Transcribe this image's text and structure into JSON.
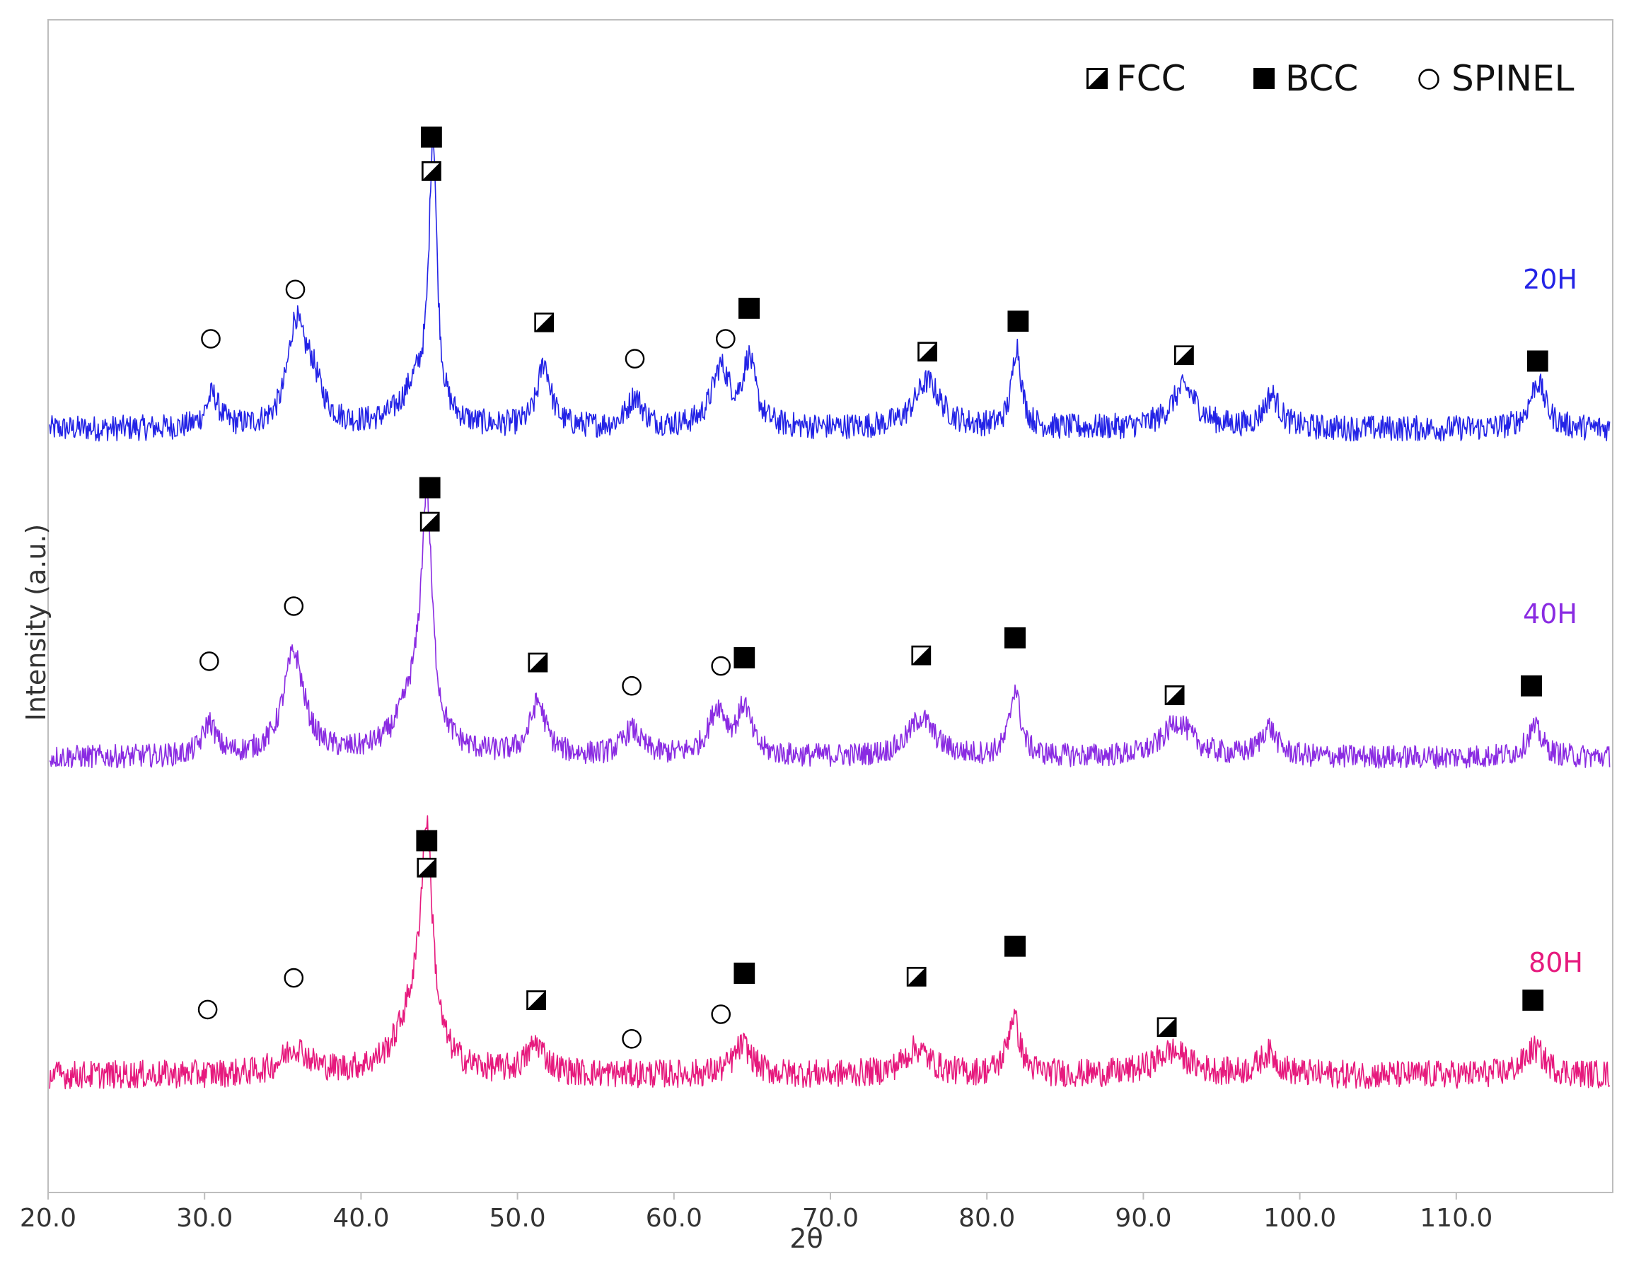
{
  "chart_data": {
    "type": "line",
    "title": "",
    "xlabel": "2θ",
    "ylabel": "Intensity (a.u.)",
    "xlim": [
      20,
      120
    ],
    "ylim": [
      0,
      1
    ],
    "x_ticks": [
      "20.0",
      "30.0",
      "40.0",
      "50.0",
      "60.0",
      "70.0",
      "80.0",
      "90.0",
      "100.0",
      "110.0"
    ],
    "y_ticks": [],
    "grid": false,
    "legend": {
      "position": "top-right",
      "entries": [
        {
          "label": "FCC",
          "marker": "fcc-half-filled-square"
        },
        {
          "label": "BCC",
          "marker": "bcc-filled-square"
        },
        {
          "label": "SPINEL",
          "marker": "spinel-open-circle"
        }
      ]
    },
    "series": [
      {
        "name": "20H",
        "color": "#2323e6",
        "baseline": 0.651,
        "noise": 0.011,
        "peaks": [
          [
            30.5,
            0.028,
            0.5
          ],
          [
            35.8,
            0.078,
            0.6
          ],
          [
            36.8,
            0.042,
            0.8
          ],
          [
            43.6,
            0.035,
            1.2
          ],
          [
            44.6,
            0.232,
            0.3
          ],
          [
            51.7,
            0.055,
            0.5
          ],
          [
            57.5,
            0.026,
            0.6
          ],
          [
            63.0,
            0.05,
            0.7
          ],
          [
            64.8,
            0.055,
            0.5
          ],
          [
            76.2,
            0.04,
            1.0
          ],
          [
            81.9,
            0.07,
            0.35
          ],
          [
            92.6,
            0.035,
            1.0
          ],
          [
            98.2,
            0.028,
            0.6
          ],
          [
            115.2,
            0.04,
            0.6
          ]
        ],
        "markers": [
          {
            "type": "spinel",
            "x": 30.4,
            "y": 0.728
          },
          {
            "type": "spinel",
            "x": 35.8,
            "y": 0.77
          },
          {
            "type": "bcc",
            "x": 44.5,
            "y": 0.9
          },
          {
            "type": "fcc",
            "x": 44.5,
            "y": 0.871
          },
          {
            "type": "fcc",
            "x": 51.7,
            "y": 0.742
          },
          {
            "type": "spinel",
            "x": 57.5,
            "y": 0.711
          },
          {
            "type": "spinel",
            "x": 63.3,
            "y": 0.728
          },
          {
            "type": "bcc",
            "x": 64.8,
            "y": 0.754
          },
          {
            "type": "fcc",
            "x": 76.2,
            "y": 0.717
          },
          {
            "type": "bcc",
            "x": 82.0,
            "y": 0.743
          },
          {
            "type": "fcc",
            "x": 92.6,
            "y": 0.714
          },
          {
            "type": "bcc",
            "x": 115.2,
            "y": 0.709
          }
        ]
      },
      {
        "name": "40H",
        "color": "#8a2be2",
        "baseline": 0.371,
        "noise": 0.01,
        "peaks": [
          [
            30.3,
            0.028,
            0.5
          ],
          [
            35.7,
            0.088,
            0.8
          ],
          [
            43.5,
            0.05,
            1.3
          ],
          [
            44.2,
            0.19,
            0.4
          ],
          [
            51.3,
            0.045,
            0.6
          ],
          [
            57.3,
            0.022,
            0.7
          ],
          [
            62.8,
            0.04,
            0.7
          ],
          [
            64.5,
            0.04,
            0.5
          ],
          [
            75.8,
            0.033,
            1.0
          ],
          [
            81.8,
            0.058,
            0.4
          ],
          [
            92.2,
            0.03,
            1.1
          ],
          [
            98.0,
            0.025,
            0.6
          ],
          [
            115.0,
            0.025,
            0.6
          ]
        ],
        "markers": [
          {
            "type": "spinel",
            "x": 30.3,
            "y": 0.453
          },
          {
            "type": "spinel",
            "x": 35.7,
            "y": 0.5
          },
          {
            "type": "bcc",
            "x": 44.4,
            "y": 0.601
          },
          {
            "type": "fcc",
            "x": 44.4,
            "y": 0.572
          },
          {
            "type": "fcc",
            "x": 51.3,
            "y": 0.452
          },
          {
            "type": "spinel",
            "x": 57.3,
            "y": 0.432
          },
          {
            "type": "spinel",
            "x": 63.0,
            "y": 0.449
          },
          {
            "type": "bcc",
            "x": 64.5,
            "y": 0.456
          },
          {
            "type": "fcc",
            "x": 75.8,
            "y": 0.458
          },
          {
            "type": "bcc",
            "x": 81.8,
            "y": 0.473
          },
          {
            "type": "fcc",
            "x": 92.0,
            "y": 0.424
          },
          {
            "type": "bcc",
            "x": 114.8,
            "y": 0.432
          }
        ]
      },
      {
        "name": "80H",
        "color": "#e6197d",
        "baseline": 0.1,
        "noise": 0.012,
        "peaks": [
          [
            35.8,
            0.022,
            1.0
          ],
          [
            43.4,
            0.05,
            1.3
          ],
          [
            44.2,
            0.18,
            0.45
          ],
          [
            51.2,
            0.025,
            0.7
          ],
          [
            64.4,
            0.025,
            0.7
          ],
          [
            75.5,
            0.022,
            1.0
          ],
          [
            81.7,
            0.05,
            0.45
          ],
          [
            91.8,
            0.02,
            1.3
          ],
          [
            98.0,
            0.018,
            0.7
          ],
          [
            115.0,
            0.022,
            0.8
          ]
        ],
        "markers": [
          {
            "type": "spinel",
            "x": 30.2,
            "y": 0.156
          },
          {
            "type": "spinel",
            "x": 35.7,
            "y": 0.183
          },
          {
            "type": "bcc",
            "x": 44.2,
            "y": 0.3
          },
          {
            "type": "fcc",
            "x": 44.2,
            "y": 0.277
          },
          {
            "type": "fcc",
            "x": 51.2,
            "y": 0.164
          },
          {
            "type": "spinel",
            "x": 57.3,
            "y": 0.131
          },
          {
            "type": "spinel",
            "x": 63.0,
            "y": 0.152
          },
          {
            "type": "bcc",
            "x": 64.5,
            "y": 0.187
          },
          {
            "type": "fcc",
            "x": 75.5,
            "y": 0.184
          },
          {
            "type": "bcc",
            "x": 81.8,
            "y": 0.21
          },
          {
            "type": "fcc",
            "x": 91.5,
            "y": 0.141
          },
          {
            "type": "bcc",
            "x": 114.9,
            "y": 0.164
          }
        ]
      }
    ]
  }
}
